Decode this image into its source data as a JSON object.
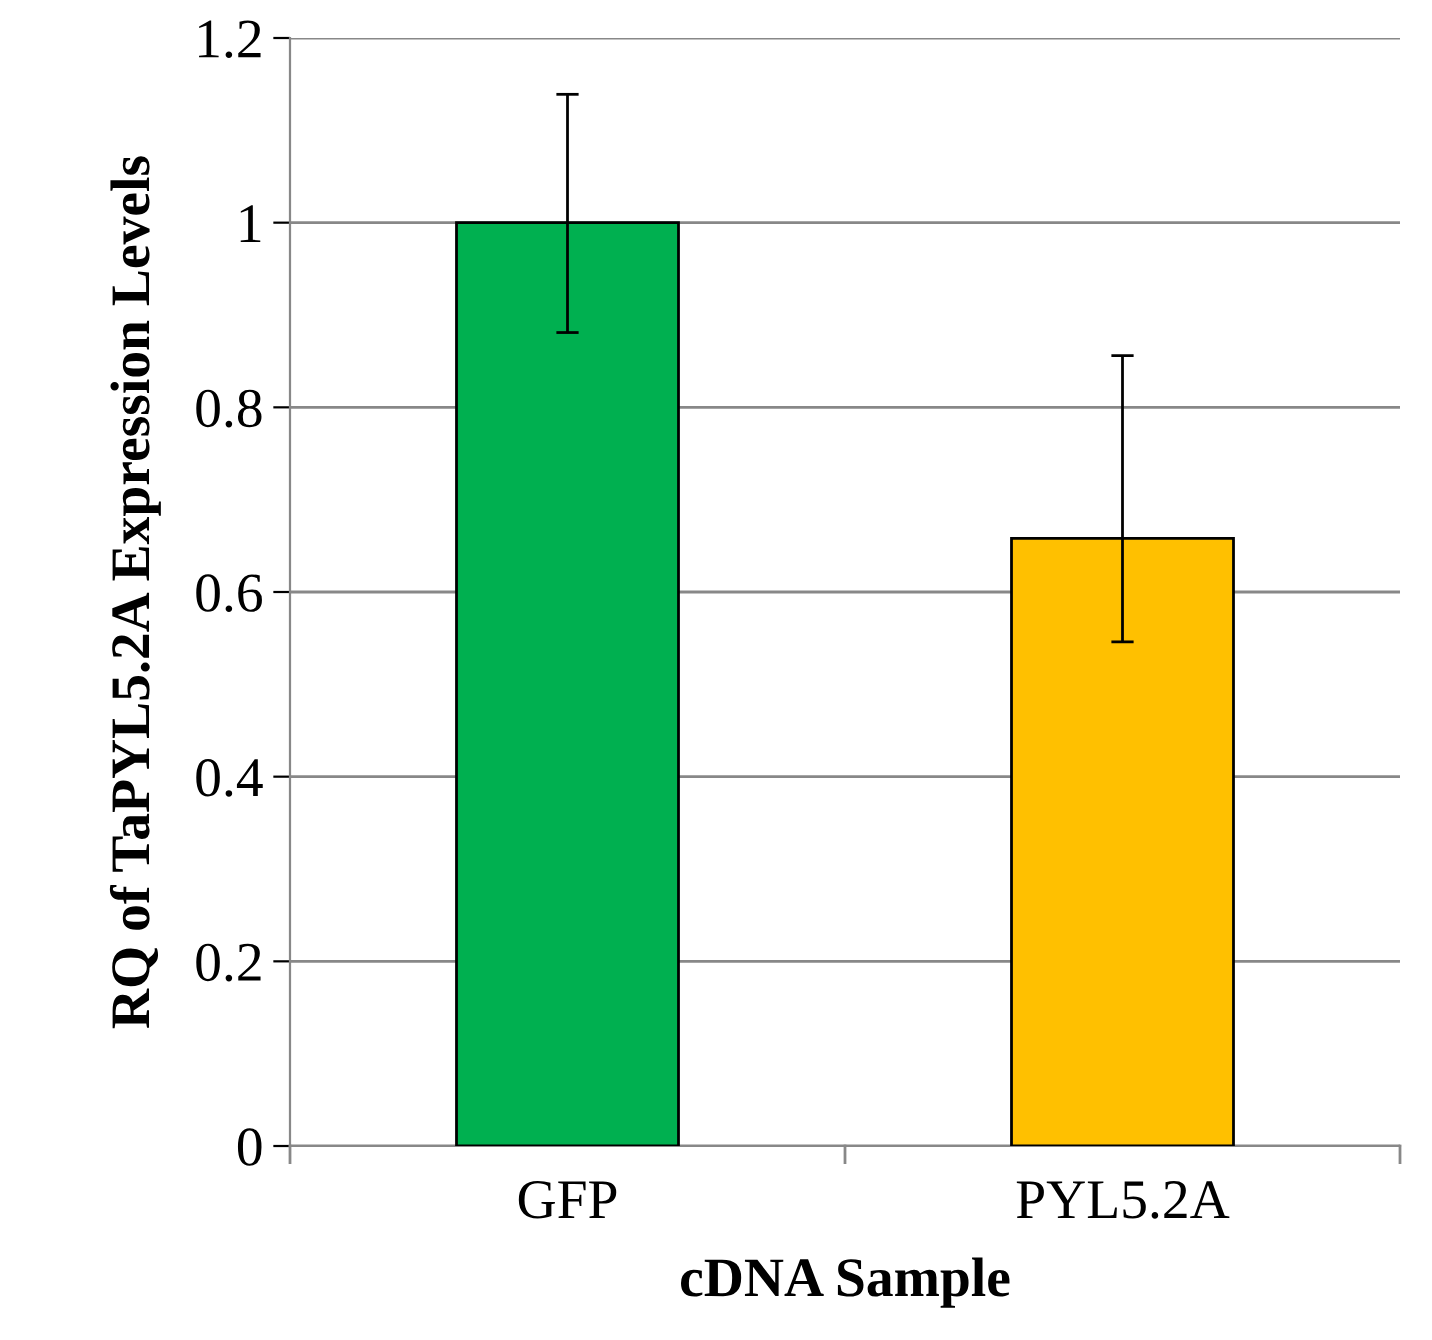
{
  "chart_data": {
    "type": "bar",
    "xlabel": "cDNA Sample",
    "ylabel": "RQ of TaPYL5.2A Expression Levels",
    "categories": [
      "GFP",
      "PYL5.2A"
    ],
    "values": [
      1.0,
      0.658
    ],
    "colors": [
      "#00b050",
      "#ffc000"
    ],
    "errors": [
      [
        0.881,
        1.139
      ],
      [
        0.546,
        0.856
      ]
    ],
    "ylim": [
      0,
      1.2
    ],
    "yticks": [
      0,
      0.2,
      0.4,
      0.6,
      0.8,
      1,
      1.2
    ],
    "grid": "y"
  }
}
